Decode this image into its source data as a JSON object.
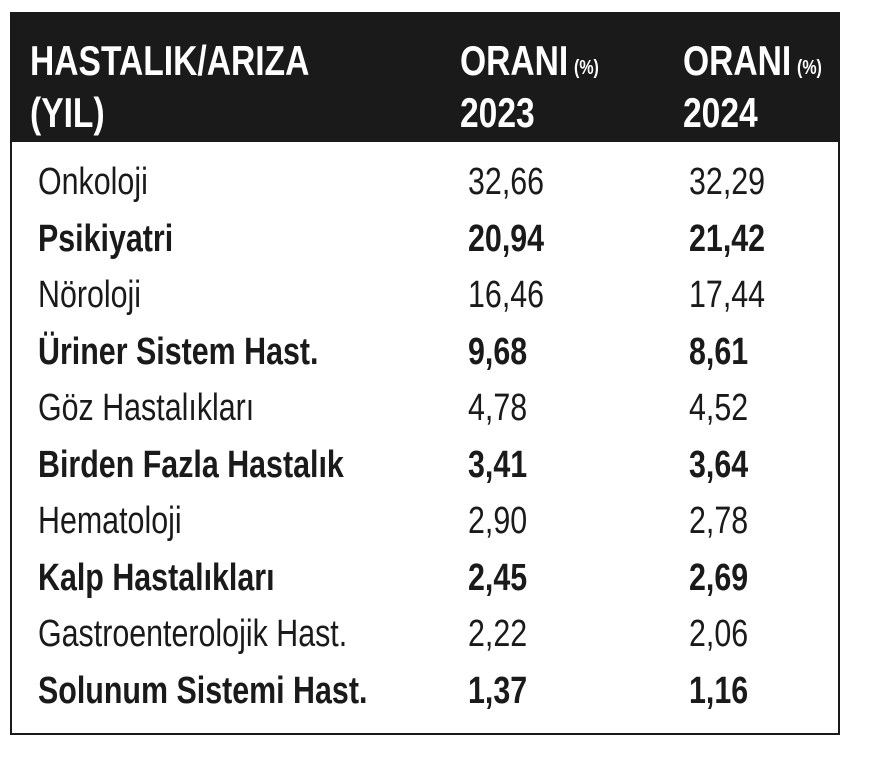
{
  "header": [
    {
      "lines": [
        "HASTALIK/ARIZA",
        "(YIL)"
      ]
    },
    {
      "label": "ORANI",
      "unit": "(%)",
      "year": "2023"
    },
    {
      "label": "ORANI",
      "unit": "(%)",
      "year": "2024"
    }
  ],
  "table": {
    "rows": [
      [
        "Onkoloji",
        "32,66",
        "32,29"
      ],
      [
        "Psikiyatri",
        "20,94",
        "21,42"
      ],
      [
        "Nöroloji",
        "16,46",
        "17,44"
      ],
      [
        "Üriner Sistem Hast.",
        "9,68",
        "8,61"
      ],
      [
        "Göz Hastalıkları",
        "4,78",
        "4,52"
      ],
      [
        "Birden Fazla Hastalık",
        "3,41",
        "3,64"
      ],
      [
        "Hematoloji",
        "2,90",
        "2,78"
      ],
      [
        "Kalp Hastalıkları",
        "2,45",
        "2,69"
      ],
      [
        "Gastroenterolojik Hast.",
        "2,22",
        "2,06"
      ],
      [
        "Solunum Sistemi Hast.",
        "1,37",
        "1,16"
      ]
    ]
  }
}
